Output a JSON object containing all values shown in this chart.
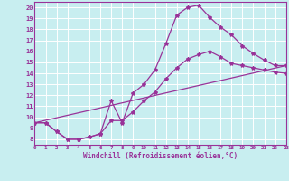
{
  "xlabel": "Windchill (Refroidissement éolien,°C)",
  "bg_color": "#c8eef0",
  "grid_color": "#ffffff",
  "line_color": "#993399",
  "xlim": [
    0,
    23
  ],
  "ylim": [
    7.5,
    20.5
  ],
  "xticks": [
    0,
    1,
    2,
    3,
    4,
    5,
    6,
    7,
    8,
    9,
    10,
    11,
    12,
    13,
    14,
    15,
    16,
    17,
    18,
    19,
    20,
    21,
    22,
    23
  ],
  "yticks": [
    8,
    9,
    10,
    11,
    12,
    13,
    14,
    15,
    16,
    17,
    18,
    19,
    20
  ],
  "line1_x": [
    0,
    1,
    2,
    3,
    4,
    5,
    6,
    7,
    8,
    9,
    10,
    11,
    12,
    13,
    14,
    15,
    16,
    17,
    18,
    19,
    20,
    21,
    22,
    23
  ],
  "line1_y": [
    9.5,
    9.5,
    8.7,
    8.0,
    8.0,
    8.2,
    8.5,
    11.5,
    9.5,
    12.2,
    13.0,
    14.3,
    16.7,
    19.3,
    20.0,
    20.2,
    19.1,
    18.2,
    17.5,
    16.5,
    15.8,
    15.2,
    14.7,
    14.7
  ],
  "line2_x": [
    0,
    1,
    2,
    3,
    4,
    5,
    6,
    7,
    8,
    9,
    10,
    11,
    12,
    13,
    14,
    15,
    16,
    17,
    18,
    19,
    20,
    21,
    22,
    23
  ],
  "line2_y": [
    9.5,
    9.5,
    8.7,
    8.0,
    8.0,
    8.2,
    8.5,
    9.7,
    9.7,
    10.5,
    11.5,
    12.3,
    13.5,
    14.5,
    15.3,
    15.7,
    16.0,
    15.5,
    14.9,
    14.7,
    14.5,
    14.3,
    14.1,
    14.0
  ],
  "line3_x": [
    0,
    23
  ],
  "line3_y": [
    9.5,
    14.7
  ]
}
